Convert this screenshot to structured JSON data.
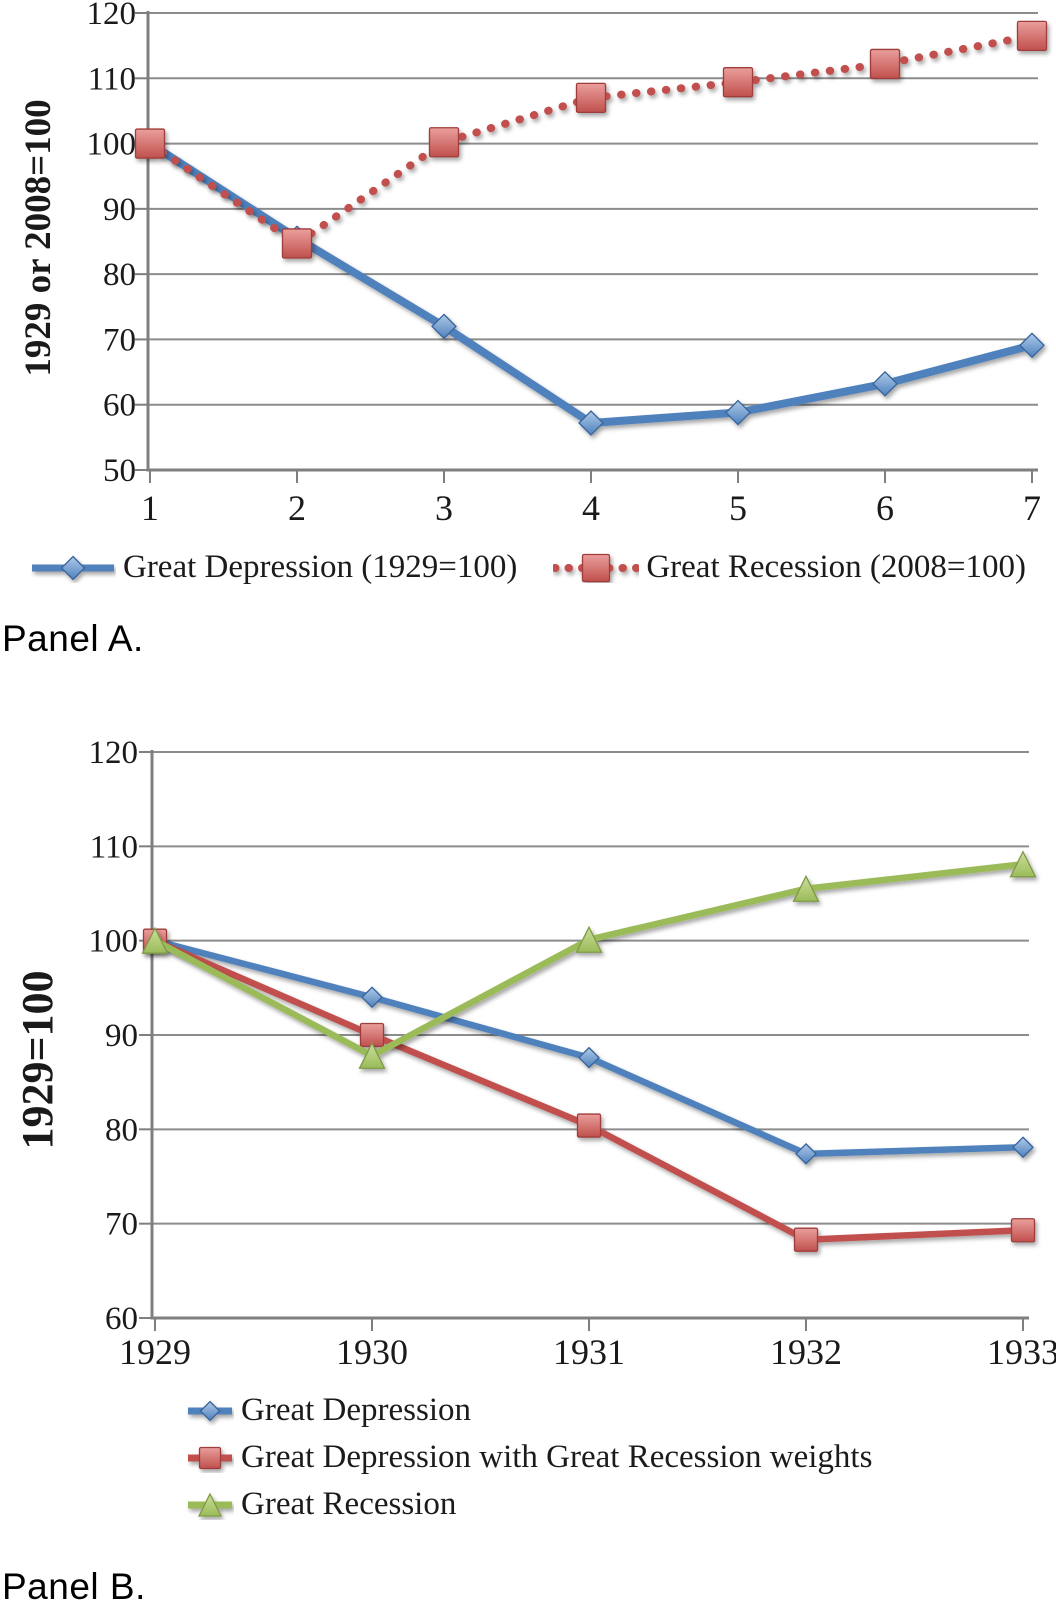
{
  "page": {
    "panel_a_caption": "Panel A.",
    "panel_b_caption": "Panel B."
  },
  "colors": {
    "blue": "#4F81BD",
    "red": "#C0504D",
    "green": "#9BBB59",
    "gridline": "#8C8C8C",
    "axis": "#7F7F7F",
    "text": "#1A1A1A"
  },
  "chart_data": [
    {
      "id": "panel_a",
      "type": "line",
      "title": "",
      "xlabel": "",
      "ylabel": "1929 or 2008=100",
      "x_tick_labels": [
        "1",
        "2",
        "3",
        "4",
        "5",
        "6",
        "7"
      ],
      "ylim": [
        50,
        120
      ],
      "yticks": [
        120,
        110,
        100,
        90,
        80,
        70,
        60,
        50
      ],
      "grid": true,
      "legend_position": "bottom-center",
      "series": [
        {
          "name": "Great Depression (1929=100)",
          "color": "#4F81BD",
          "marker": "diamond",
          "line_style": "solid",
          "values": [
            100,
            85.5,
            72,
            57.2,
            58.8,
            63.2,
            69.1
          ]
        },
        {
          "name": "Great Recession (2008=100)",
          "color": "#C0504D",
          "marker": "square",
          "line_style": "dotted",
          "values": [
            100,
            84.7,
            100.2,
            107,
            109.4,
            112.2,
            116.5
          ]
        }
      ]
    },
    {
      "id": "panel_b",
      "type": "line",
      "title": "",
      "xlabel": "",
      "ylabel": "1929=100",
      "x_tick_labels": [
        "1929",
        "1930",
        "1931",
        "1932",
        "1933"
      ],
      "ylim": [
        60,
        120
      ],
      "yticks": [
        120,
        110,
        100,
        90,
        80,
        70,
        60
      ],
      "grid": true,
      "legend_position": "bottom-left",
      "series": [
        {
          "name": "Great Depression",
          "color": "#4F81BD",
          "marker": "diamond",
          "line_style": "solid",
          "values": [
            100,
            94,
            87.6,
            77.4,
            78.1
          ]
        },
        {
          "name": "Great Depression with Great Recession weights",
          "color": "#C0504D",
          "marker": "square",
          "line_style": "solid",
          "values": [
            100,
            90,
            80.4,
            68.3,
            69.3
          ]
        },
        {
          "name": "Great Recession",
          "color": "#9BBB59",
          "marker": "triangle",
          "line_style": "solid",
          "values": [
            100,
            87.8,
            100.1,
            105.5,
            108.1
          ]
        }
      ]
    }
  ]
}
